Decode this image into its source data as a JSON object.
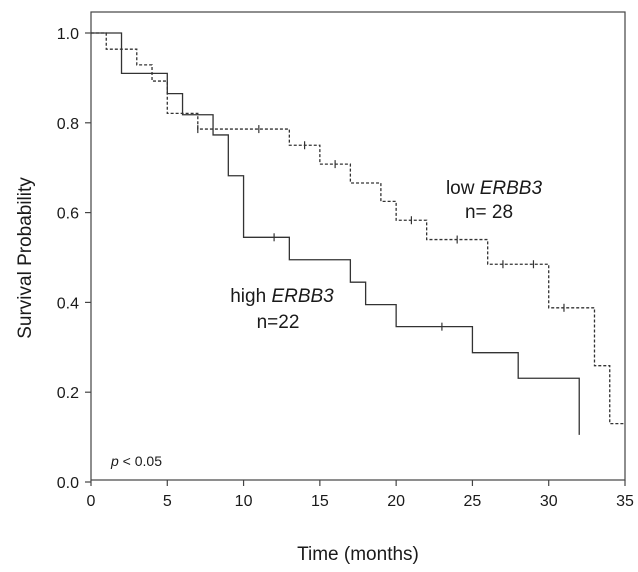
{
  "chart_data": {
    "type": "line",
    "xlabel": "Time (months)",
    "ylabel": "Survival Probability",
    "xlim": [
      0,
      35
    ],
    "ylim": [
      0,
      1
    ],
    "xticks": [
      "0",
      "5",
      "10",
      "15",
      "20",
      "25",
      "30",
      "35"
    ],
    "yticks": [
      "0.0",
      "0.2",
      "0.4",
      "0.6",
      "0.8",
      "1.0"
    ],
    "grid": false,
    "annotation": {
      "p_prefix": "p",
      "p_suffix": " < 0.05"
    },
    "series": [
      {
        "label_prefix": "high ",
        "label_gene": "ERBB3",
        "label_n": "n=22",
        "style": "solid",
        "color": "#333333",
        "steps": [
          [
            0,
            1.0
          ],
          [
            2,
            0.91
          ],
          [
            5,
            0.865
          ],
          [
            6,
            0.818
          ],
          [
            8,
            0.773
          ],
          [
            9,
            0.682
          ],
          [
            10,
            0.545
          ],
          [
            13,
            0.495
          ],
          [
            17,
            0.445
          ],
          [
            18,
            0.395
          ],
          [
            20,
            0.346
          ],
          [
            25,
            0.288
          ],
          [
            28,
            0.231
          ],
          [
            32,
            0.105
          ]
        ],
        "censored": [
          [
            12,
            0.545
          ],
          [
            23,
            0.346
          ]
        ]
      },
      {
        "label_prefix": "low ",
        "label_gene": "ERBB3",
        "label_n": "n= 28",
        "style": "dashed",
        "color": "#333333",
        "steps": [
          [
            0,
            1.0
          ],
          [
            1,
            0.964
          ],
          [
            3,
            0.929
          ],
          [
            4,
            0.893
          ],
          [
            5,
            0.821
          ],
          [
            7,
            0.786
          ],
          [
            13,
            0.75
          ],
          [
            15,
            0.708
          ],
          [
            17,
            0.666
          ],
          [
            19,
            0.625
          ],
          [
            20,
            0.583
          ],
          [
            22,
            0.54
          ],
          [
            26,
            0.485
          ],
          [
            30,
            0.388
          ],
          [
            32,
            0.388
          ],
          [
            33,
            0.259
          ],
          [
            34,
            0.13
          ],
          [
            35,
            0.13
          ]
        ],
        "censored": [
          [
            7,
            0.786
          ],
          [
            11,
            0.786
          ],
          [
            14,
            0.75
          ],
          [
            16,
            0.708
          ],
          [
            21,
            0.583
          ],
          [
            24,
            0.54
          ],
          [
            27,
            0.485
          ],
          [
            29,
            0.485
          ],
          [
            31,
            0.388
          ]
        ]
      }
    ]
  }
}
